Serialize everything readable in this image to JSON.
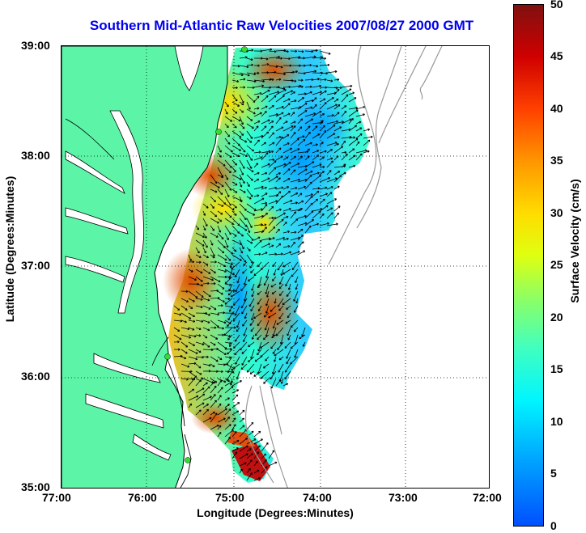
{
  "map": {
    "title": "Southern Mid-Atlantic Raw Velocities 2007/08/27 2000 GMT",
    "x_axis_title": "Longitude (Degrees:Minutes)",
    "y_axis_title": "Latitude (Degrees:Minutes)",
    "longitude_ticks": [
      "77:00",
      "76:00",
      "75:00",
      "74:00",
      "73:00",
      "72:00"
    ],
    "latitude_ticks": [
      "39:00",
      "38:00",
      "37:00",
      "36:00",
      "35:00"
    ],
    "colorbar": {
      "label": "Surface Velocity (cm/s)",
      "ticks": [
        "50",
        "45",
        "40",
        "35",
        "30",
        "25",
        "20",
        "15",
        "10",
        "5",
        "0"
      ],
      "min": 0,
      "max": 50
    },
    "colors": {
      "land": "#5cf5a8",
      "coast": "#000000",
      "bathymetry": "#999999",
      "title": "#0000ee",
      "stations": "#33dd33"
    }
  }
}
